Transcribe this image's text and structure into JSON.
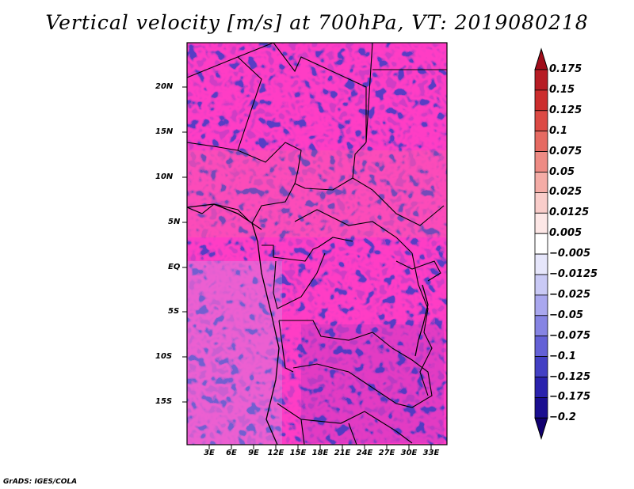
{
  "title": "Vertical velocity [m/s] at 700hPa, VT: 2019080218",
  "map": {
    "lat_labels": [
      "20N",
      "15N",
      "10N",
      "5N",
      "EQ",
      "5S",
      "10S",
      "15S"
    ],
    "lat_values": [
      20,
      15,
      10,
      5,
      0,
      -5,
      -10,
      -15
    ],
    "lon_labels": [
      "3E",
      "6E",
      "9E",
      "12E",
      "15E",
      "18E",
      "21E",
      "24E",
      "27E",
      "30E",
      "33E"
    ],
    "lon_values": [
      3,
      6,
      9,
      12,
      15,
      18,
      21,
      24,
      27,
      30,
      33
    ]
  },
  "colorbar": {
    "levels": [
      "0.175",
      "0.15",
      "0.125",
      "0.1",
      "0.075",
      "0.05",
      "0.025",
      "0.0125",
      "0.005",
      "−0.005",
      "−0.0125",
      "−0.025",
      "−0.05",
      "−0.075",
      "−0.1",
      "−0.125",
      "−0.175",
      "−0.2"
    ],
    "colors": [
      "#a00d1a",
      "#b71c24",
      "#cc2d2d",
      "#dc4a44",
      "#e66a62",
      "#ee8b84",
      "#f4aca6",
      "#f9cdca",
      "#fde7e6",
      "#ffffff",
      "#e6e6fb",
      "#c9c9f5",
      "#a9a7ee",
      "#8684e3",
      "#6461d6",
      "#4340c4",
      "#2a22ad",
      "#1a0e90",
      "#110070"
    ]
  },
  "credit": "GrADS: IGES/COLA"
}
